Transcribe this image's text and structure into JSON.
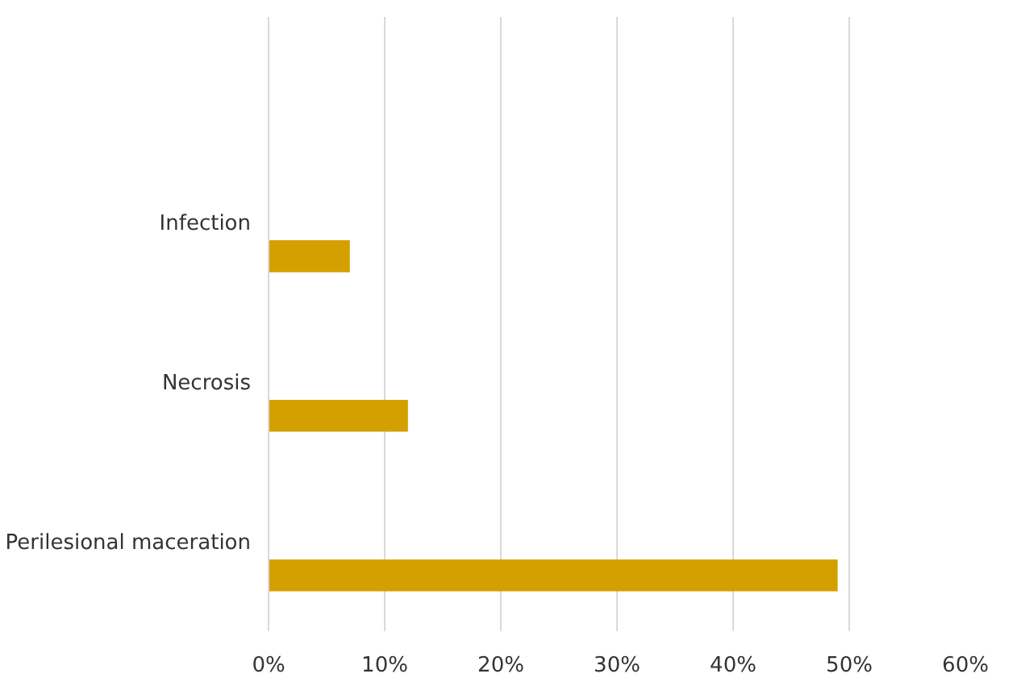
{
  "chart_data": {
    "type": "bar",
    "orientation": "horizontal",
    "categories": [
      null,
      "Infection",
      "Necrosis",
      "Perilesional maceration"
    ],
    "series": [
      {
        "color": "#d4a000",
        "values": [
          null,
          7,
          12,
          49
        ]
      }
    ],
    "xlim": [
      0,
      60
    ],
    "xticks": [
      {
        "value": 0,
        "label": "0%"
      },
      {
        "value": 10,
        "label": "10%"
      },
      {
        "value": 20,
        "label": "20%"
      },
      {
        "value": 30,
        "label": "30%"
      },
      {
        "value": 40,
        "label": "40%"
      },
      {
        "value": 50,
        "label": "50%"
      },
      {
        "value": 60,
        "label": "60%"
      }
    ],
    "grid": "x"
  }
}
